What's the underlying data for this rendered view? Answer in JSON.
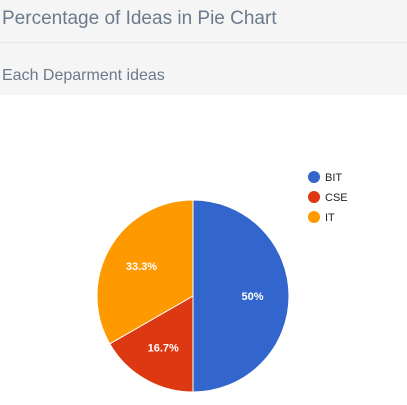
{
  "header": {
    "title": "Percentage of Ideas in Pie Chart"
  },
  "section": {
    "title": "Each Deparment ideas"
  },
  "chart_data": {
    "type": "pie",
    "title": "",
    "categories": [
      "BIT",
      "CSE",
      "IT"
    ],
    "values": [
      50,
      16.7,
      33.3
    ],
    "labels": [
      "50%",
      "16.7%",
      "33.3%"
    ],
    "colors": [
      "#3366cc",
      "#dc3912",
      "#ff9900"
    ],
    "legend_position": "right"
  }
}
